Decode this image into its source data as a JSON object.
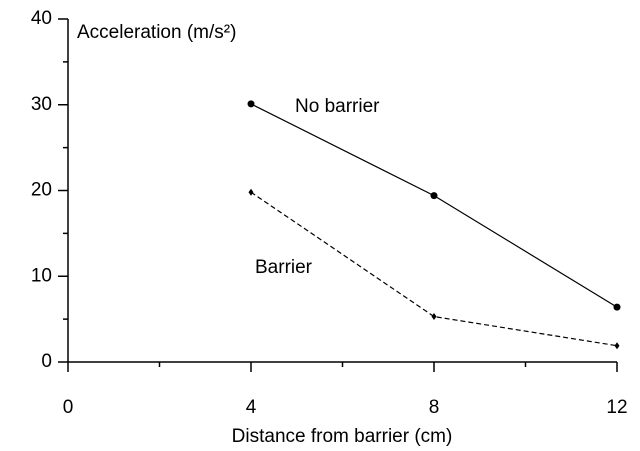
{
  "chart_data": {
    "type": "line",
    "y_label": "Acceleration (m/s²)",
    "x_label": "Distance from barrier (cm)",
    "x": [
      4,
      8,
      12
    ],
    "series": [
      {
        "name": "No barrier",
        "color": "#000000",
        "dash": "solid",
        "marker": "circle",
        "values": [
          30.1,
          19.4,
          6.4
        ]
      },
      {
        "name": "Barrier",
        "color": "#000000",
        "dash": "dashed",
        "marker": "diamond",
        "values": [
          19.8,
          5.3,
          1.9
        ]
      }
    ],
    "xlim": [
      0,
      12
    ],
    "xticks": [
      0,
      4,
      8,
      12
    ],
    "x_minor_ticks": [
      2,
      6,
      10
    ],
    "ylim": [
      0,
      40
    ],
    "yticks": [
      0,
      10,
      20,
      30,
      40
    ],
    "y_minor_ticks": [
      5,
      15,
      25,
      35
    ],
    "grid": false
  }
}
